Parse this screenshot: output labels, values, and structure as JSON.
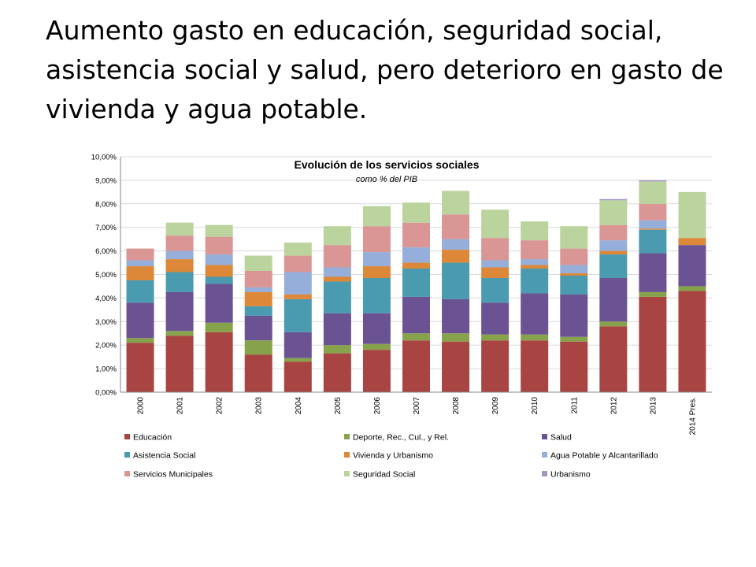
{
  "slide": {
    "title": "Aumento gasto en educación, seguridad social, asistencia social y salud, pero deterioro en gasto de vivienda y agua potable."
  },
  "chart_data": {
    "type": "bar",
    "stacked": true,
    "title": "Evolución de los servicios sociales",
    "subtitle": "como % del PIB",
    "xlabel": "",
    "ylabel": "",
    "ylim": [
      0,
      10
    ],
    "yticks": [
      "0,00%",
      "1,00%",
      "2,00%",
      "3,00%",
      "4,00%",
      "5,00%",
      "6,00%",
      "7,00%",
      "8,00%",
      "9,00%",
      "10,00%"
    ],
    "grid": true,
    "legend_position": "bottom",
    "categories": [
      "2000",
      "2001",
      "2002",
      "2003",
      "2004",
      "2005",
      "2006",
      "2007",
      "2008",
      "2009",
      "2010",
      "2011",
      "2012",
      "2013",
      "2014 Pres."
    ],
    "series": [
      {
        "name": "Educación",
        "color": "#A84542",
        "values": [
          2.1,
          2.4,
          2.55,
          1.6,
          1.3,
          1.65,
          1.8,
          2.2,
          2.15,
          2.2,
          2.2,
          2.15,
          2.8,
          4.05,
          4.3
        ]
      },
      {
        "name": "Deporte, Rec., Cul., y Rel.",
        "color": "#86A24B",
        "values": [
          0.2,
          0.2,
          0.4,
          0.6,
          0.15,
          0.35,
          0.25,
          0.3,
          0.35,
          0.25,
          0.25,
          0.2,
          0.2,
          0.2,
          0.2
        ]
      },
      {
        "name": "Salud",
        "color": "#6B5393",
        "values": [
          1.5,
          1.65,
          1.65,
          1.05,
          1.1,
          1.35,
          1.3,
          1.55,
          1.45,
          1.35,
          1.75,
          1.8,
          1.85,
          1.65,
          1.75
        ]
      },
      {
        "name": "Asistencia Social",
        "color": "#4A9AB0",
        "values": [
          0.95,
          0.85,
          0.3,
          0.4,
          1.4,
          1.35,
          1.5,
          1.2,
          1.55,
          1.05,
          1.05,
          0.8,
          1.0,
          1.0,
          0.0
        ]
      },
      {
        "name": "Vivienda y Urbanismo",
        "color": "#DD8738",
        "values": [
          0.6,
          0.55,
          0.5,
          0.6,
          0.2,
          0.2,
          0.5,
          0.25,
          0.55,
          0.45,
          0.15,
          0.1,
          0.15,
          0.05,
          0.3
        ]
      },
      {
        "name": "Agua Potable y Alcantarillado",
        "color": "#95AEDA",
        "values": [
          0.25,
          0.35,
          0.45,
          0.2,
          0.95,
          0.4,
          0.6,
          0.65,
          0.45,
          0.3,
          0.25,
          0.35,
          0.45,
          0.35,
          0.0
        ]
      },
      {
        "name": "Servicios Municipales",
        "color": "#DA9595",
        "values": [
          0.5,
          0.65,
          0.75,
          0.7,
          0.7,
          0.95,
          1.1,
          1.05,
          1.05,
          0.95,
          0.8,
          0.7,
          0.65,
          0.7,
          0.0
        ]
      },
      {
        "name": "Seguridad Social",
        "color": "#BBD39C",
        "values": [
          0.0,
          0.55,
          0.5,
          0.65,
          0.55,
          0.8,
          0.85,
          0.85,
          1.0,
          1.2,
          0.8,
          0.95,
          1.05,
          0.95,
          1.95
        ]
      },
      {
        "name": "Urbanismo",
        "color": "#A594C2",
        "values": [
          0.0,
          0.0,
          0.0,
          0.0,
          0.0,
          0.0,
          0.0,
          0.0,
          0.0,
          0.0,
          0.0,
          0.0,
          0.05,
          0.05,
          0.0
        ]
      }
    ]
  }
}
